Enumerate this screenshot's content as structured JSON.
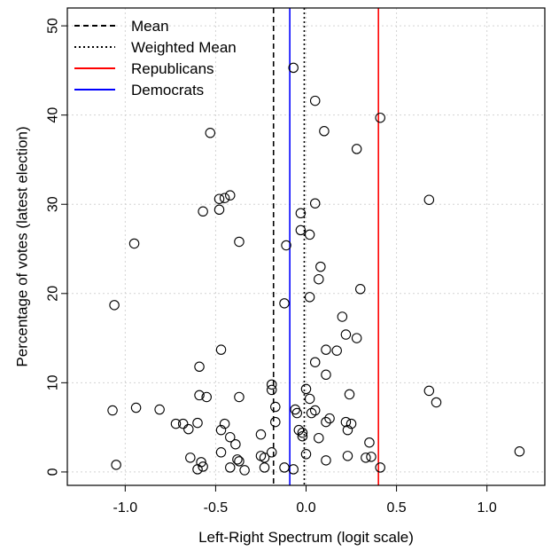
{
  "chart_data": {
    "type": "scatter",
    "title": "",
    "xlabel": "Left-Right Spectrum (logit scale)",
    "ylabel": "Percentage of votes (latest election)",
    "xlim": [
      -1.32,
      1.32
    ],
    "ylim": [
      -1.5,
      52
    ],
    "xticks": [
      -1.0,
      -0.5,
      0.0,
      0.5,
      1.0
    ],
    "xtick_labels": [
      "-1.0",
      "-0.5",
      "0.0",
      "0.5",
      "1.0"
    ],
    "yticks": [
      0,
      10,
      20,
      30,
      40,
      50
    ],
    "ytick_labels": [
      "0",
      "10",
      "20",
      "30",
      "40",
      "50"
    ],
    "grid": true,
    "legend_position": "top-left",
    "reference_lines": [
      {
        "name": "Mean",
        "x": -0.18,
        "style": "dashed",
        "color": "#000000"
      },
      {
        "name": "Weighted Mean",
        "x": -0.01,
        "style": "dotted",
        "color": "#000000"
      },
      {
        "name": "Republicans",
        "x": 0.4,
        "style": "solid",
        "color": "#ff0000"
      },
      {
        "name": "Democrats",
        "x": -0.09,
        "style": "solid",
        "color": "#0000ff"
      }
    ],
    "points": [
      [
        -0.07,
        45.3
      ],
      [
        0.05,
        41.6
      ],
      [
        0.41,
        39.7
      ],
      [
        0.1,
        38.2
      ],
      [
        -0.53,
        38.0
      ],
      [
        0.28,
        36.2
      ],
      [
        0.68,
        30.5
      ],
      [
        -0.42,
        31.0
      ],
      [
        -0.45,
        30.7
      ],
      [
        -0.48,
        30.6
      ],
      [
        0.05,
        30.1
      ],
      [
        -0.48,
        29.4
      ],
      [
        -0.57,
        29.2
      ],
      [
        -0.03,
        29.0
      ],
      [
        -0.03,
        27.1
      ],
      [
        0.02,
        26.6
      ],
      [
        -0.95,
        25.6
      ],
      [
        -0.37,
        25.8
      ],
      [
        -0.11,
        25.4
      ],
      [
        0.08,
        23.0
      ],
      [
        0.07,
        21.6
      ],
      [
        0.3,
        20.5
      ],
      [
        0.02,
        19.6
      ],
      [
        -0.12,
        18.9
      ],
      [
        -1.06,
        18.7
      ],
      [
        0.2,
        17.4
      ],
      [
        0.22,
        15.4
      ],
      [
        0.28,
        15.0
      ],
      [
        0.11,
        13.7
      ],
      [
        0.17,
        13.6
      ],
      [
        -0.47,
        13.7
      ],
      [
        0.05,
        12.3
      ],
      [
        -0.59,
        11.8
      ],
      [
        0.11,
        10.9
      ],
      [
        0.24,
        8.7
      ],
      [
        -0.19,
        9.8
      ],
      [
        -0.19,
        9.2
      ],
      [
        0.0,
        9.3
      ],
      [
        -0.59,
        8.6
      ],
      [
        -0.55,
        8.4
      ],
      [
        -0.37,
        8.4
      ],
      [
        0.02,
        8.2
      ],
      [
        0.68,
        9.1
      ],
      [
        0.72,
        7.8
      ],
      [
        -0.17,
        7.3
      ],
      [
        -1.07,
        6.9
      ],
      [
        -0.94,
        7.2
      ],
      [
        -0.81,
        7.0
      ],
      [
        -0.06,
        7.0
      ],
      [
        -0.05,
        6.6
      ],
      [
        0.03,
        6.6
      ],
      [
        0.05,
        6.9
      ],
      [
        -0.72,
        5.4
      ],
      [
        -0.68,
        5.4
      ],
      [
        -0.65,
        4.8
      ],
      [
        -0.6,
        5.5
      ],
      [
        -0.45,
        5.4
      ],
      [
        -0.17,
        5.6
      ],
      [
        0.11,
        5.6
      ],
      [
        0.13,
        6.0
      ],
      [
        0.22,
        5.6
      ],
      [
        0.25,
        5.4
      ],
      [
        -0.47,
        4.7
      ],
      [
        -0.04,
        4.7
      ],
      [
        -0.02,
        4.4
      ],
      [
        -0.02,
        4.0
      ],
      [
        0.23,
        4.7
      ],
      [
        -0.42,
        3.9
      ],
      [
        -0.39,
        3.1
      ],
      [
        0.07,
        3.8
      ],
      [
        -0.25,
        4.2
      ],
      [
        0.35,
        3.3
      ],
      [
        -0.64,
        1.6
      ],
      [
        -0.47,
        2.2
      ],
      [
        -0.38,
        1.4
      ],
      [
        -0.37,
        1.2
      ],
      [
        -0.25,
        1.8
      ],
      [
        -0.23,
        1.6
      ],
      [
        -0.19,
        2.2
      ],
      [
        0.0,
        2.0
      ],
      [
        0.11,
        1.3
      ],
      [
        0.23,
        1.8
      ],
      [
        0.33,
        1.6
      ],
      [
        0.36,
        1.7
      ],
      [
        1.18,
        2.3
      ],
      [
        -0.58,
        1.1
      ],
      [
        -0.6,
        0.3
      ],
      [
        -0.57,
        0.6
      ],
      [
        -1.05,
        0.8
      ],
      [
        -0.42,
        0.5
      ],
      [
        -0.34,
        0.2
      ],
      [
        -0.23,
        0.5
      ],
      [
        -0.12,
        0.5
      ],
      [
        -0.07,
        0.3
      ],
      [
        0.41,
        0.5
      ]
    ]
  }
}
